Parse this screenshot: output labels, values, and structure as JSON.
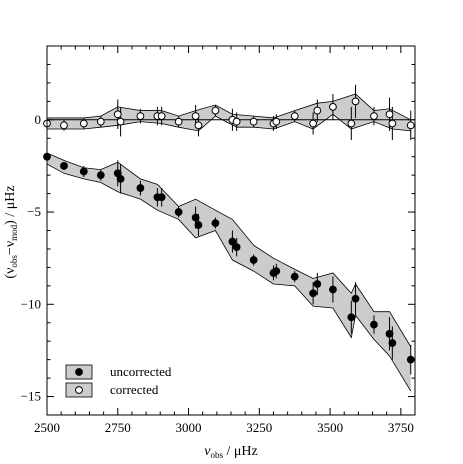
{
  "chart_data": {
    "type": "scatter",
    "xlabel_main": "ν",
    "xlabel_sub": "obs",
    "xlabel_unit": " / μHz",
    "ylabel_open": "(ν",
    "ylabel_sub1": "obs",
    "ylabel_mid": "−ν",
    "ylabel_sub2": "mod",
    "ylabel_unit": ") / μHz",
    "xlim": [
      2500,
      3800
    ],
    "ylim": [
      -16,
      4
    ],
    "xticks": [
      2500,
      2750,
      3000,
      3250,
      3500,
      3750
    ],
    "yticks": [
      0,
      -5,
      -10,
      -15
    ],
    "zero_line": true,
    "band_color": "#cccccc",
    "legend_position": "bottom-left",
    "series": [
      {
        "name": "uncorrected",
        "marker": "filled-circle",
        "band": true,
        "points": [
          {
            "x": 2500,
            "y": -2.0,
            "err": 0.2
          },
          {
            "x": 2560,
            "y": -2.5,
            "err": 0.2
          },
          {
            "x": 2630,
            "y": -2.8,
            "err": 0.3
          },
          {
            "x": 2690,
            "y": -3.0,
            "err": 0.3
          },
          {
            "x": 2750,
            "y": -2.9,
            "err": 0.7
          },
          {
            "x": 2760,
            "y": -3.2,
            "err": 0.8
          },
          {
            "x": 2830,
            "y": -3.7,
            "err": 0.4
          },
          {
            "x": 2890,
            "y": -4.2,
            "err": 0.5
          },
          {
            "x": 2905,
            "y": -4.2,
            "err": 0.5
          },
          {
            "x": 2965,
            "y": -5.0,
            "err": 0.3
          },
          {
            "x": 3025,
            "y": -5.3,
            "err": 0.6
          },
          {
            "x": 3035,
            "y": -5.7,
            "err": 0.6
          },
          {
            "x": 3095,
            "y": -5.6,
            "err": 0.3
          },
          {
            "x": 3155,
            "y": -6.6,
            "err": 0.6
          },
          {
            "x": 3170,
            "y": -6.9,
            "err": 0.5
          },
          {
            "x": 3230,
            "y": -7.6,
            "err": 0.3
          },
          {
            "x": 3300,
            "y": -8.3,
            "err": 0.4
          },
          {
            "x": 3310,
            "y": -8.2,
            "err": 0.4
          },
          {
            "x": 3375,
            "y": -8.5,
            "err": 0.3
          },
          {
            "x": 3440,
            "y": -9.4,
            "err": 0.6
          },
          {
            "x": 3455,
            "y": -8.9,
            "err": 0.6
          },
          {
            "x": 3510,
            "y": -9.2,
            "err": 0.7
          },
          {
            "x": 3575,
            "y": -10.7,
            "err": 0.9
          },
          {
            "x": 3590,
            "y": -9.7,
            "err": 0.9
          },
          {
            "x": 3655,
            "y": -11.1,
            "err": 0.5
          },
          {
            "x": 3710,
            "y": -11.6,
            "err": 0.9
          },
          {
            "x": 3720,
            "y": -12.1,
            "err": 0.9
          },
          {
            "x": 3785,
            "y": -13.0,
            "err": 0.8
          }
        ],
        "band_upper": [
          {
            "x": 2500,
            "y": -1.8
          },
          {
            "x": 2560,
            "y": -2.2
          },
          {
            "x": 2630,
            "y": -2.6
          },
          {
            "x": 2690,
            "y": -2.7
          },
          {
            "x": 2750,
            "y": -2.3
          },
          {
            "x": 2830,
            "y": -3.2
          },
          {
            "x": 2890,
            "y": -3.5
          },
          {
            "x": 2965,
            "y": -4.7
          },
          {
            "x": 3025,
            "y": -4.3
          },
          {
            "x": 3095,
            "y": -4.9
          },
          {
            "x": 3155,
            "y": -5.4
          },
          {
            "x": 3230,
            "y": -6.8
          },
          {
            "x": 3300,
            "y": -7.5
          },
          {
            "x": 3375,
            "y": -8.1
          },
          {
            "x": 3440,
            "y": -8.6
          },
          {
            "x": 3510,
            "y": -8.3
          },
          {
            "x": 3575,
            "y": -9.4
          },
          {
            "x": 3590,
            "y": -8.9
          },
          {
            "x": 3655,
            "y": -10.4
          },
          {
            "x": 3710,
            "y": -10.4
          },
          {
            "x": 3785,
            "y": -12.3
          }
        ],
        "band_lower": [
          {
            "x": 2500,
            "y": -2.4
          },
          {
            "x": 2560,
            "y": -2.9
          },
          {
            "x": 2630,
            "y": -3.2
          },
          {
            "x": 2690,
            "y": -3.4
          },
          {
            "x": 2750,
            "y": -3.9
          },
          {
            "x": 2830,
            "y": -4.3
          },
          {
            "x": 2890,
            "y": -4.9
          },
          {
            "x": 2965,
            "y": -5.4
          },
          {
            "x": 3025,
            "y": -6.4
          },
          {
            "x": 3095,
            "y": -6.0
          },
          {
            "x": 3155,
            "y": -7.6
          },
          {
            "x": 3230,
            "y": -8.2
          },
          {
            "x": 3300,
            "y": -8.9
          },
          {
            "x": 3375,
            "y": -9.0
          },
          {
            "x": 3440,
            "y": -10.1
          },
          {
            "x": 3510,
            "y": -10.2
          },
          {
            "x": 3575,
            "y": -11.8
          },
          {
            "x": 3590,
            "y": -10.6
          },
          {
            "x": 3655,
            "y": -11.9
          },
          {
            "x": 3710,
            "y": -12.8
          },
          {
            "x": 3785,
            "y": -14.7
          }
        ]
      },
      {
        "name": "corrected",
        "marker": "open-circle",
        "band": true,
        "points": [
          {
            "x": 2500,
            "y": -0.2,
            "err": 0.3
          },
          {
            "x": 2560,
            "y": -0.3,
            "err": 0.3
          },
          {
            "x": 2630,
            "y": -0.2,
            "err": 0.3
          },
          {
            "x": 2690,
            "y": -0.1,
            "err": 0.3
          },
          {
            "x": 2750,
            "y": 0.3,
            "err": 0.8
          },
          {
            "x": 2760,
            "y": -0.1,
            "err": 0.8
          },
          {
            "x": 2830,
            "y": 0.2,
            "err": 0.4
          },
          {
            "x": 2890,
            "y": 0.2,
            "err": 0.5
          },
          {
            "x": 2905,
            "y": 0.2,
            "err": 0.5
          },
          {
            "x": 2965,
            "y": -0.1,
            "err": 0.3
          },
          {
            "x": 3025,
            "y": 0.2,
            "err": 0.6
          },
          {
            "x": 3035,
            "y": -0.3,
            "err": 0.6
          },
          {
            "x": 3095,
            "y": 0.5,
            "err": 0.3
          },
          {
            "x": 3155,
            "y": 0.0,
            "err": 0.6
          },
          {
            "x": 3170,
            "y": -0.1,
            "err": 0.5
          },
          {
            "x": 3230,
            "y": -0.1,
            "err": 0.3
          },
          {
            "x": 3300,
            "y": -0.2,
            "err": 0.4
          },
          {
            "x": 3310,
            "y": -0.1,
            "err": 0.4
          },
          {
            "x": 3375,
            "y": 0.2,
            "err": 0.3
          },
          {
            "x": 3440,
            "y": -0.2,
            "err": 0.6
          },
          {
            "x": 3455,
            "y": 0.5,
            "err": 0.6
          },
          {
            "x": 3510,
            "y": 0.7,
            "err": 0.7
          },
          {
            "x": 3575,
            "y": -0.2,
            "err": 0.9
          },
          {
            "x": 3590,
            "y": 1.0,
            "err": 0.9
          },
          {
            "x": 3655,
            "y": 0.2,
            "err": 0.5
          },
          {
            "x": 3710,
            "y": 0.3,
            "err": 0.9
          },
          {
            "x": 3720,
            "y": -0.2,
            "err": 0.9
          },
          {
            "x": 3785,
            "y": -0.3,
            "err": 0.8
          }
        ],
        "band_upper": [
          {
            "x": 2500,
            "y": 0.1
          },
          {
            "x": 2630,
            "y": 0.1
          },
          {
            "x": 2690,
            "y": 0.2
          },
          {
            "x": 2750,
            "y": 0.7
          },
          {
            "x": 2830,
            "y": 0.5
          },
          {
            "x": 2905,
            "y": 0.5
          },
          {
            "x": 2965,
            "y": 0.2
          },
          {
            "x": 3025,
            "y": 0.5
          },
          {
            "x": 3095,
            "y": 0.8
          },
          {
            "x": 3155,
            "y": 0.3
          },
          {
            "x": 3230,
            "y": 0.2
          },
          {
            "x": 3300,
            "y": 0.1
          },
          {
            "x": 3375,
            "y": 0.5
          },
          {
            "x": 3455,
            "y": 0.9
          },
          {
            "x": 3510,
            "y": 1.0
          },
          {
            "x": 3590,
            "y": 1.4
          },
          {
            "x": 3655,
            "y": 0.5
          },
          {
            "x": 3710,
            "y": 0.6
          },
          {
            "x": 3785,
            "y": 0.0
          }
        ],
        "band_lower": [
          {
            "x": 2500,
            "y": -0.5
          },
          {
            "x": 2630,
            "y": -0.5
          },
          {
            "x": 2690,
            "y": -0.4
          },
          {
            "x": 2750,
            "y": -0.3
          },
          {
            "x": 2830,
            "y": -0.1
          },
          {
            "x": 2905,
            "y": -0.2
          },
          {
            "x": 2965,
            "y": -0.4
          },
          {
            "x": 3035,
            "y": -0.6
          },
          {
            "x": 3095,
            "y": 0.2
          },
          {
            "x": 3170,
            "y": -0.4
          },
          {
            "x": 3230,
            "y": -0.4
          },
          {
            "x": 3300,
            "y": -0.5
          },
          {
            "x": 3375,
            "y": -0.1
          },
          {
            "x": 3440,
            "y": -0.5
          },
          {
            "x": 3510,
            "y": 0.3
          },
          {
            "x": 3575,
            "y": -0.5
          },
          {
            "x": 3655,
            "y": -0.1
          },
          {
            "x": 3720,
            "y": -0.5
          },
          {
            "x": 3785,
            "y": -0.6
          }
        ]
      }
    ],
    "legend": [
      {
        "label": "uncorrected",
        "marker": "filled-circle"
      },
      {
        "label": "corrected",
        "marker": "open-circle"
      }
    ]
  }
}
